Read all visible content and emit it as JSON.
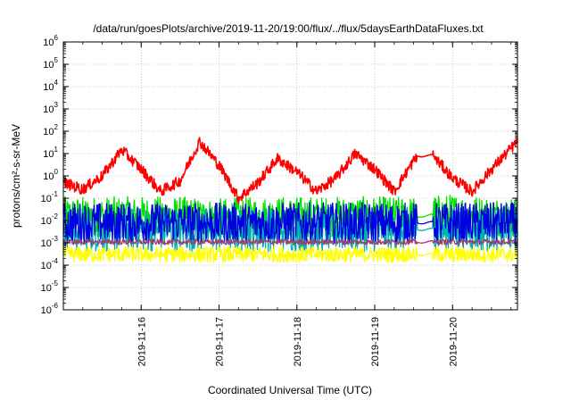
{
  "chart_data": {
    "type": "line",
    "title": "/data/run/goesPlots/archive/2019-11-20/19:00/flux/../flux/5daysEarthDataFluxes.txt",
    "xlabel": "Coordinated Universal Time (UTC)",
    "ylabel": "protons/cm²-s-sr-MeV",
    "y_scale": "log",
    "ylim": [
      1e-06,
      1000000.0
    ],
    "xlim": [
      "2019-11-15T00:00",
      "2019-11-20T20:00"
    ],
    "grid": true,
    "legend": "none",
    "x_ticks": [
      "2019-11-16",
      "2019-11-17",
      "2019-11-18",
      "2019-11-19",
      "2019-11-20"
    ],
    "y_ticks": [
      {
        "base": "10",
        "exp": "-6"
      },
      {
        "base": "10",
        "exp": "-5"
      },
      {
        "base": "10",
        "exp": "-4"
      },
      {
        "base": "10",
        "exp": "-3"
      },
      {
        "base": "10",
        "exp": "-2"
      },
      {
        "base": "10",
        "exp": "-1"
      },
      {
        "base": "10",
        "exp": "0"
      },
      {
        "base": "10",
        "exp": "1"
      },
      {
        "base": "10",
        "exp": "2"
      },
      {
        "base": "10",
        "exp": "3"
      },
      {
        "base": "10",
        "exp": "4"
      },
      {
        "base": "10",
        "exp": "5"
      },
      {
        "base": "10",
        "exp": "6"
      }
    ],
    "data_gap": [
      "2019-11-19T13:00",
      "2019-11-19T18:00"
    ],
    "series": [
      {
        "color": "#00e000",
        "noise": 0.9,
        "x": [
          "2019-11-15T00:00",
          "2019-11-15T12:00",
          "2019-11-16T00:00",
          "2019-11-16T12:00",
          "2019-11-17T00:00",
          "2019-11-17T12:00",
          "2019-11-18T00:00",
          "2019-11-18T12:00",
          "2019-11-19T00:00",
          "2019-11-19T12:00",
          "2019-11-20T00:00",
          "2019-11-20T12:00",
          "2019-11-20T20:00"
        ],
        "y": [
          0.015,
          0.015,
          0.015,
          0.015,
          0.012,
          0.015,
          0.015,
          0.015,
          0.015,
          0.015,
          0.02,
          0.015,
          0.015
        ]
      },
      {
        "color": "#00b0b0",
        "noise": 1.0,
        "x": [
          "2019-11-15T00:00",
          "2019-11-15T12:00",
          "2019-11-16T00:00",
          "2019-11-16T12:00",
          "2019-11-17T00:00",
          "2019-11-17T12:00",
          "2019-11-18T00:00",
          "2019-11-18T12:00",
          "2019-11-19T00:00",
          "2019-11-19T12:00",
          "2019-11-20T00:00",
          "2019-11-20T12:00",
          "2019-11-20T20:00"
        ],
        "y": [
          0.004,
          0.004,
          0.004,
          0.004,
          0.004,
          0.004,
          0.004,
          0.004,
          0.004,
          0.004,
          0.004,
          0.004,
          0.004
        ]
      },
      {
        "color": "#0000e0",
        "noise": 0.9,
        "x": [
          "2019-11-15T00:00",
          "2019-11-15T12:00",
          "2019-11-16T00:00",
          "2019-11-16T12:00",
          "2019-11-17T00:00",
          "2019-11-17T12:00",
          "2019-11-18T00:00",
          "2019-11-18T12:00",
          "2019-11-19T00:00",
          "2019-11-19T12:00",
          "2019-11-20T00:00",
          "2019-11-20T12:00",
          "2019-11-20T20:00"
        ],
        "y": [
          0.008,
          0.008,
          0.008,
          0.008,
          0.008,
          0.008,
          0.008,
          0.008,
          0.008,
          0.008,
          0.008,
          0.008,
          0.008
        ]
      },
      {
        "color": "#ffff00",
        "noise": 0.35,
        "x": [
          "2019-11-15T00:00",
          "2019-11-15T12:00",
          "2019-11-16T00:00",
          "2019-11-16T12:00",
          "2019-11-17T00:00",
          "2019-11-17T12:00",
          "2019-11-18T00:00",
          "2019-11-18T12:00",
          "2019-11-19T00:00",
          "2019-11-19T12:00",
          "2019-11-20T00:00",
          "2019-11-20T12:00",
          "2019-11-20T20:00"
        ],
        "y": [
          0.0003,
          0.0003,
          0.0003,
          0.0003,
          0.0003,
          0.0003,
          0.0003,
          0.0003,
          0.0003,
          0.0003,
          0.0003,
          0.0003,
          0.0003
        ]
      },
      {
        "color": "#9a4070",
        "noise": 0.12,
        "x": [
          "2019-11-15T00:00",
          "2019-11-15T12:00",
          "2019-11-16T00:00",
          "2019-11-16T12:00",
          "2019-11-17T00:00",
          "2019-11-17T12:00",
          "2019-11-18T00:00",
          "2019-11-18T12:00",
          "2019-11-19T00:00",
          "2019-11-19T12:00",
          "2019-11-20T00:00",
          "2019-11-20T12:00",
          "2019-11-20T20:00"
        ],
        "y": [
          0.0011,
          0.0011,
          0.0011,
          0.0011,
          0.0011,
          0.0011,
          0.0011,
          0.0011,
          0.0011,
          0.0011,
          0.0011,
          0.0011,
          0.0011
        ]
      },
      {
        "color": "#ff0000",
        "noise": 0.25,
        "x": [
          "2019-11-15T00:00",
          "2019-11-15T06:00",
          "2019-11-15T12:00",
          "2019-11-15T18:00",
          "2019-11-16T00:00",
          "2019-11-16T06:00",
          "2019-11-16T12:00",
          "2019-11-16T18:00",
          "2019-11-17T00:00",
          "2019-11-17T06:00",
          "2019-11-17T12:00",
          "2019-11-17T18:00",
          "2019-11-18T00:00",
          "2019-11-18T06:00",
          "2019-11-18T12:00",
          "2019-11-18T18:00",
          "2019-11-19T00:00",
          "2019-11-19T06:00",
          "2019-11-19T13:00",
          "2019-11-19T18:00",
          "2019-11-20T00:00",
          "2019-11-20T06:00",
          "2019-11-20T12:00",
          "2019-11-20T20:00"
        ],
        "y": [
          0.5,
          0.25,
          1.0,
          15,
          2.0,
          0.2,
          0.6,
          35,
          3.0,
          0.1,
          0.5,
          6.0,
          1.5,
          0.2,
          0.8,
          10,
          2.0,
          0.2,
          8.0,
          8.0,
          0.8,
          0.2,
          2.0,
          35
        ]
      }
    ]
  }
}
